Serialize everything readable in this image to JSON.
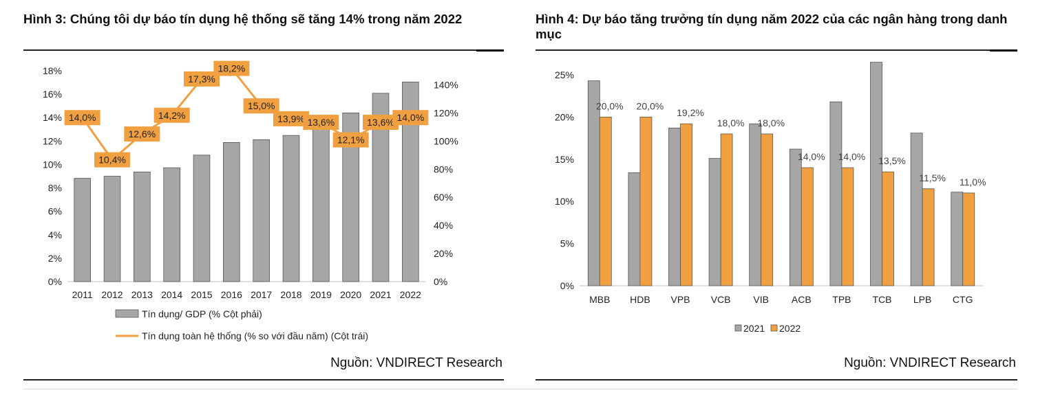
{
  "figure3": {
    "title": "Hình 3: Chúng tôi dự báo tín dụng hệ thống sẽ tăng 14% trong năm 2022",
    "source": "Nguồn: VNDIRECT Research"
  },
  "figure4": {
    "title": "Hình 4: Dự báo tăng trưởng tín dụng năm 2022 của các ngân hàng trong danh mục",
    "source": "Nguồn: VNDIRECT Research"
  },
  "chart_data": [
    {
      "type": "bar",
      "title": "Hình 3: Chúng tôi dự báo tín dụng hệ thống sẽ tăng 14% trong năm 2022",
      "categories": [
        "2011",
        "2012",
        "2013",
        "2014",
        "2015",
        "2016",
        "2017",
        "2018",
        "2019",
        "2020",
        "2021",
        "2022"
      ],
      "series": [
        {
          "name": "Tín dụng/ GDP (% Cột phải)",
          "type": "bar",
          "axis": "right",
          "color": "#a6a6a6",
          "values": [
            73.5,
            75,
            78,
            81,
            90,
            99,
            101,
            104,
            110,
            120,
            134,
            142
          ]
        },
        {
          "name": "Tín dụng toàn hệ thống (% so với đầu năm) (Cột trái)",
          "type": "line",
          "axis": "left",
          "color": "#f0a040",
          "values": [
            14.0,
            10.4,
            12.6,
            14.2,
            17.3,
            18.2,
            15.0,
            13.9,
            13.6,
            12.1,
            13.6,
            14.0
          ],
          "labels": [
            "14,0%",
            "10,4%",
            "12,6%",
            "14,2%",
            "17,3%",
            "18,2%",
            "15,0%",
            "13,9%",
            "13,6%",
            "12,1%",
            "13,6%",
            "14,0%"
          ]
        }
      ],
      "y_left": {
        "ylim": [
          0,
          18
        ],
        "ticks": [
          "0%",
          "2%",
          "4%",
          "6%",
          "8%",
          "10%",
          "12%",
          "14%",
          "16%",
          "18%"
        ]
      },
      "y_right": {
        "ylim": [
          0,
          150
        ],
        "ticks": [
          "0%",
          "20%",
          "40%",
          "60%",
          "80%",
          "100%",
          "120%",
          "140%"
        ]
      },
      "legend": "bottom",
      "grid": false
    },
    {
      "type": "bar",
      "title": "Hình 4: Dự báo tăng trưởng tín dụng năm 2022 của các ngân hàng trong danh mục",
      "categories": [
        "MBB",
        "HDB",
        "VPB",
        "VCB",
        "VIB",
        "ACB",
        "TPB",
        "TCB",
        "LPB",
        "CTG"
      ],
      "series": [
        {
          "name": "2021",
          "color": "#a6a6a6",
          "values": [
            24.3,
            13.4,
            18.7,
            15.1,
            19.2,
            16.2,
            21.8,
            26.5,
            18.1,
            11.1
          ]
        },
        {
          "name": "2022",
          "color": "#f0a040",
          "values": [
            20.0,
            20.0,
            19.2,
            18.0,
            18.0,
            14.0,
            14.0,
            13.5,
            11.5,
            11.0
          ],
          "labels": [
            "20,0%",
            "20,0%",
            "19,2%",
            "18,0%",
            "18,0%",
            "14,0%",
            "14,0%",
            "13,5%",
            "11,5%",
            "11,0%"
          ]
        }
      ],
      "ylim": [
        0,
        25
      ],
      "y_ticks": [
        "0%",
        "5%",
        "10%",
        "15%",
        "20%",
        "25%"
      ],
      "legend": "bottom",
      "grid": false
    }
  ]
}
